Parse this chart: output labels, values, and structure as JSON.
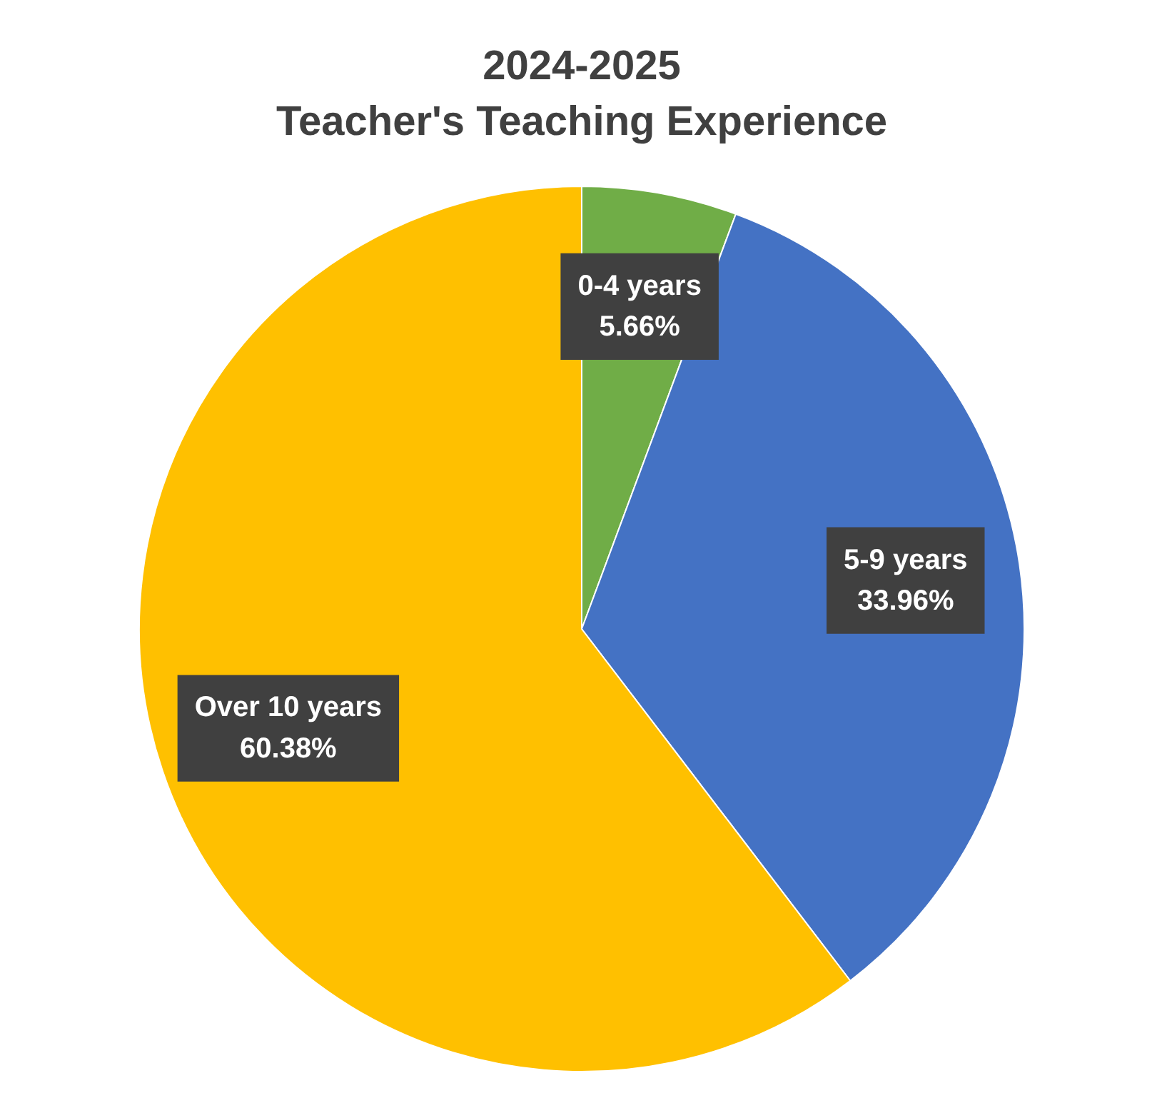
{
  "chart_data": {
    "type": "pie",
    "title": "2024-2025\nTeacher's Teaching Experience",
    "categories": [
      "0-4 years",
      "5-9 years",
      "Over 10 years"
    ],
    "values": [
      5.66,
      33.96,
      60.38
    ],
    "colors": [
      "#70ad47",
      "#4472c4",
      "#ffc000"
    ],
    "value_labels": [
      "5.66%",
      "33.96%",
      "60.38%"
    ]
  }
}
